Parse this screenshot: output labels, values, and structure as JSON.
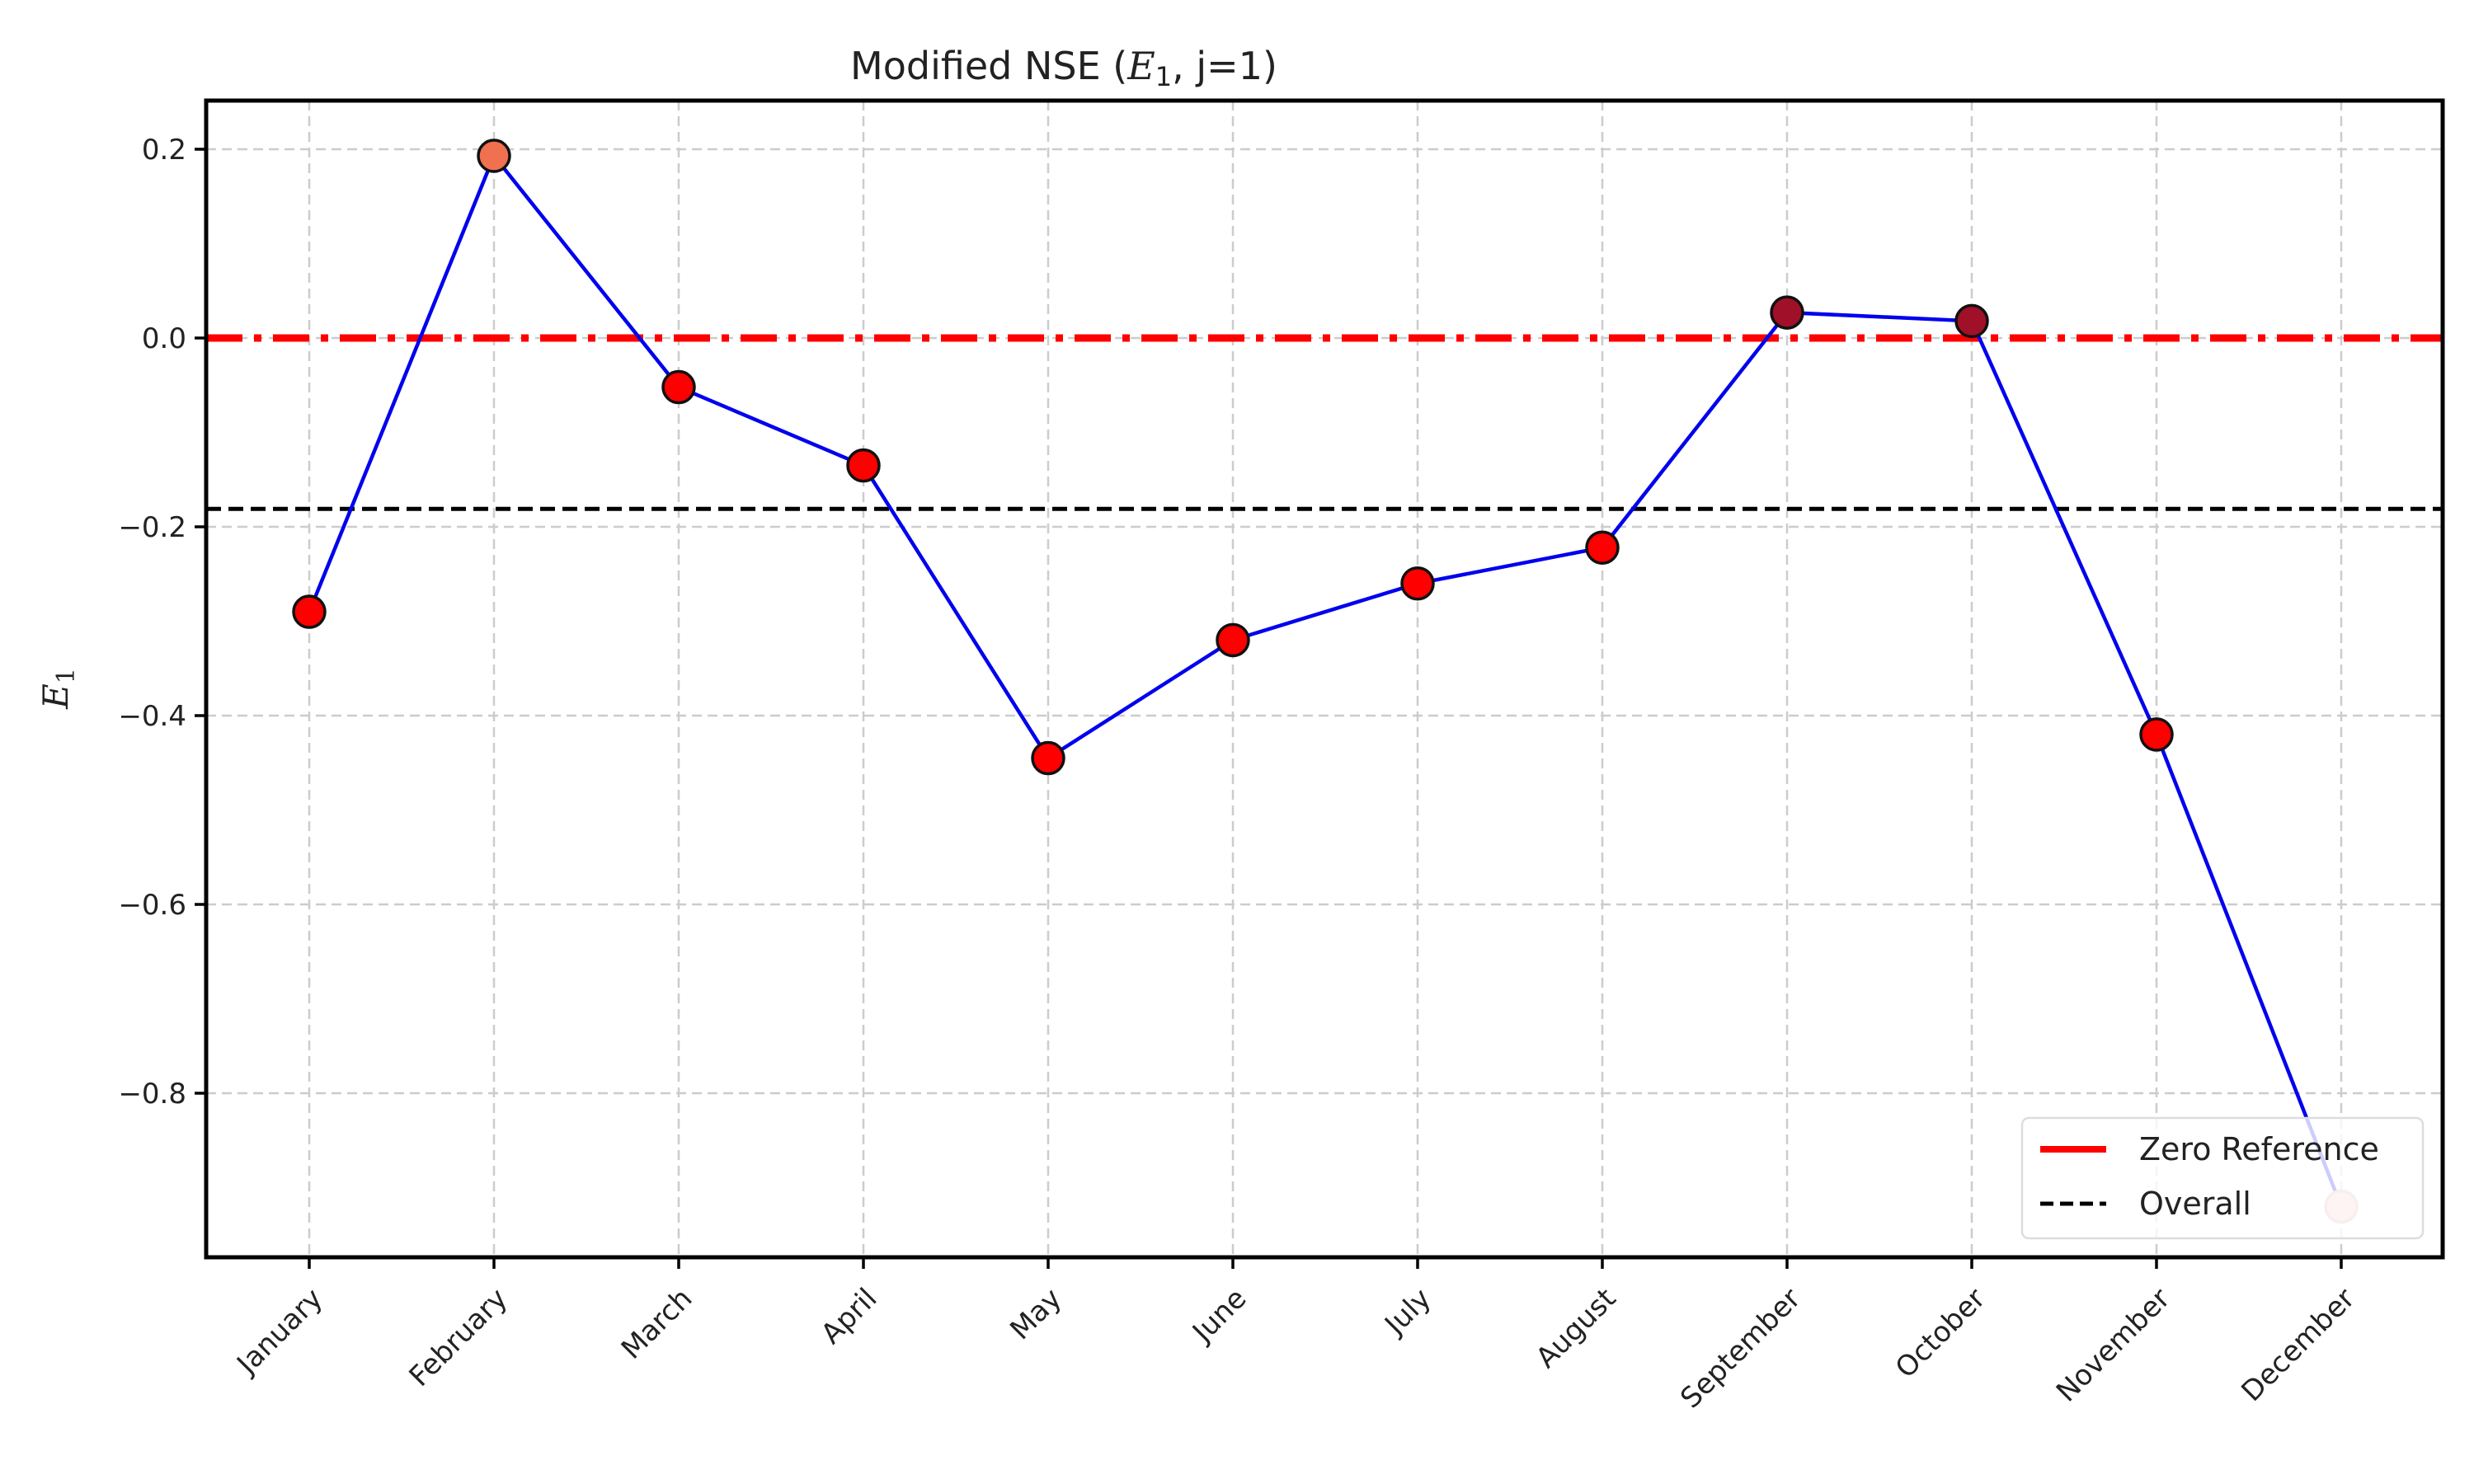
{
  "chart_data": {
    "type": "line",
    "title": "Modified NSE (E₁, j=1)",
    "xlabel": "",
    "ylabel": "E₁",
    "categories": [
      "January",
      "February",
      "March",
      "April",
      "May",
      "June",
      "July",
      "August",
      "September",
      "October",
      "November",
      "December"
    ],
    "series": [
      {
        "values": [
          -0.29,
          0.193,
          -0.052,
          -0.135,
          -0.445,
          -0.32,
          -0.26,
          -0.222,
          0.027,
          0.018,
          -0.42,
          -0.92
        ],
        "line_color": "#0000ee",
        "marker_colors": [
          "#ff0000",
          "#f07050",
          "#ff0000",
          "#ff0000",
          "#ff0000",
          "#ff0000",
          "#ff0000",
          "#ff0000",
          "#a01028",
          "#a01028",
          "#ff0000",
          "#f8c8c8"
        ]
      }
    ],
    "reference_lines": [
      {
        "name": "Zero Reference",
        "y": 0.0,
        "color": "#ff0000",
        "style": "dash-dot"
      },
      {
        "name": "Overall",
        "y": -0.181,
        "color": "#000000",
        "style": "dashed"
      }
    ],
    "ylim": [
      -0.98,
      0.25
    ],
    "yticks": [
      0.2,
      0.0,
      -0.2,
      -0.4,
      -0.6,
      -0.8
    ],
    "ytick_labels": [
      "0.2",
      "0.0",
      "−0.2",
      "−0.4",
      "−0.6",
      "−0.8"
    ],
    "grid": true,
    "legend_position": "lower-right",
    "legend": [
      "Zero Reference",
      "Overall"
    ]
  }
}
